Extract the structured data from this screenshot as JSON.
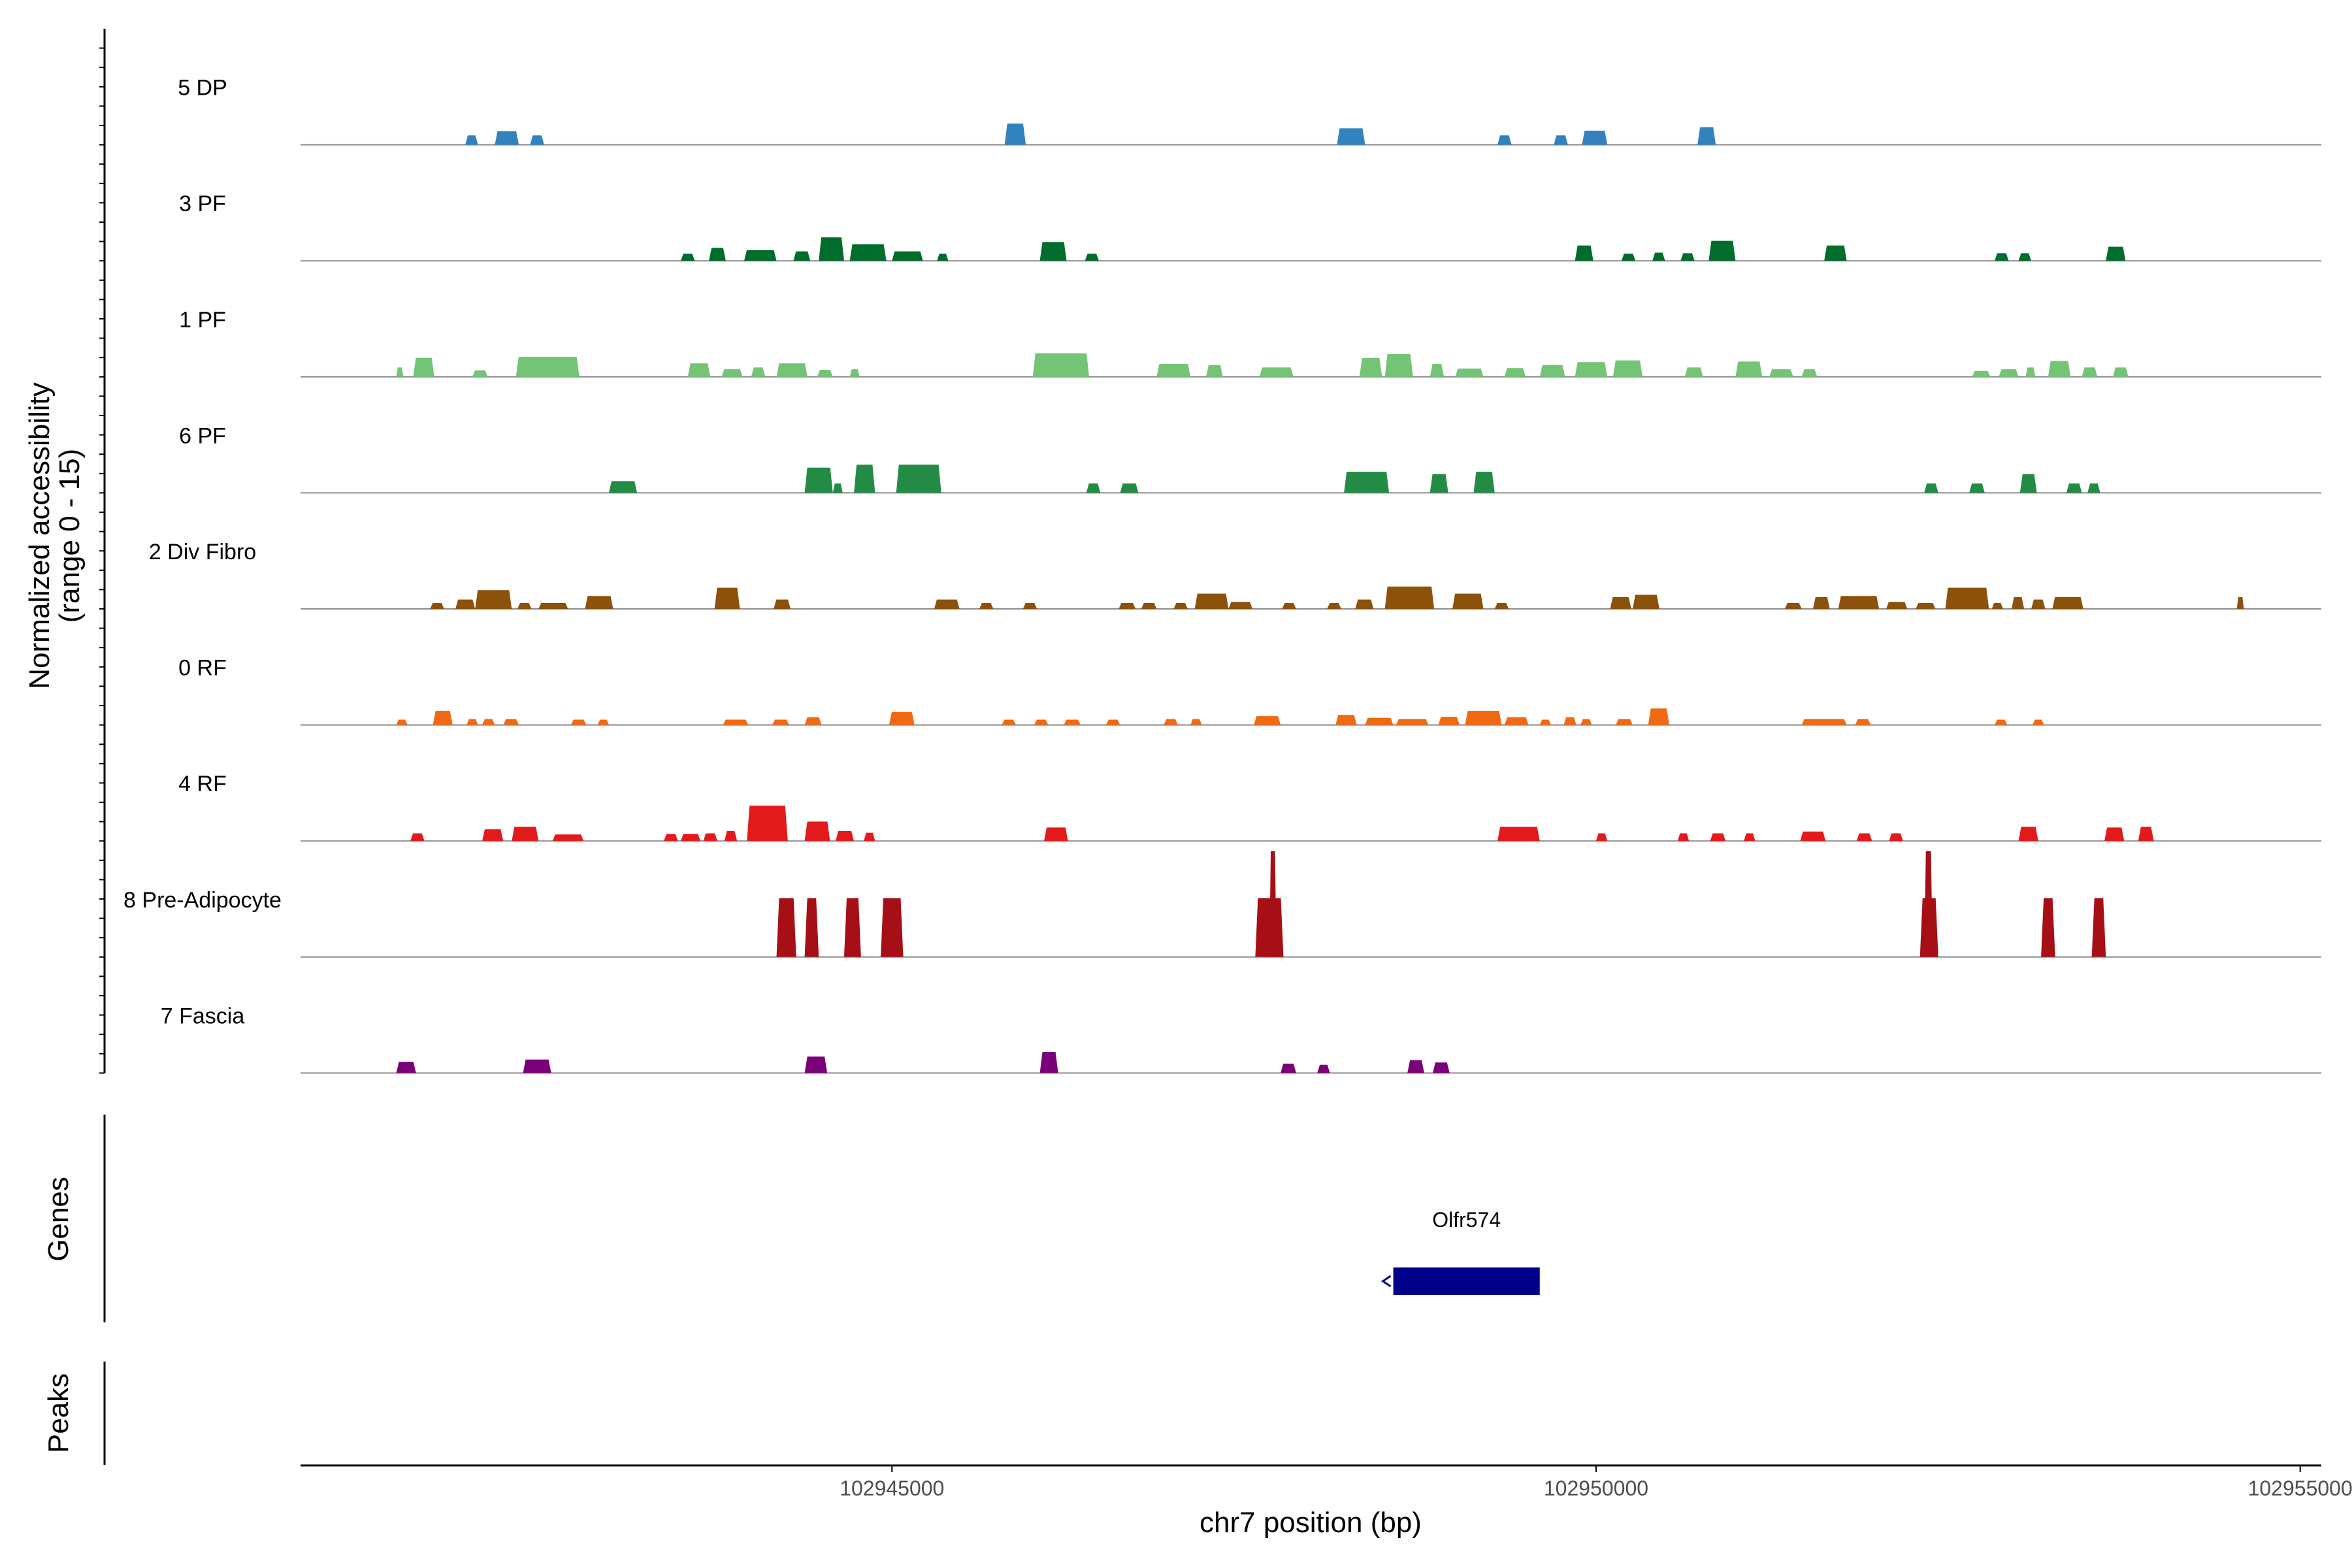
{
  "chart_data": {
    "type": "area",
    "title": "",
    "xlabel": "chr7 position (bp)",
    "ylabel": "Normalized accessibility\n(range 0 - 15)",
    "ylabel_lines": [
      "Normalized accessibility",
      "(range 0 - 15)"
    ],
    "y_range": [
      0,
      15
    ],
    "xlim": [
      102940800,
      102955150
    ],
    "x_ticks": [
      102945000,
      102950000,
      102955000
    ],
    "x_tick_labels": [
      "102945000",
      "102950000",
      "102955000"
    ],
    "tracks": [
      {
        "name": "5 DP",
        "color": "#3182BD",
        "peaks": [
          [
            102941970,
            102942060,
            1.6
          ],
          [
            102942180,
            102942350,
            2.3
          ],
          [
            102942430,
            102942530,
            1.6
          ],
          [
            102945800,
            102945950,
            3.6
          ],
          [
            102948160,
            102948360,
            2.8
          ],
          [
            102949300,
            102949400,
            1.6
          ],
          [
            102949700,
            102949800,
            1.6
          ],
          [
            102949900,
            102950080,
            2.4
          ],
          [
            102950720,
            102950850,
            3.0
          ]
        ]
      },
      {
        "name": "3 PF",
        "color": "#006D2C",
        "peaks": [
          [
            102943500,
            102943600,
            1.2
          ],
          [
            102943700,
            102943820,
            2.2
          ],
          [
            102943950,
            102944180,
            1.8
          ],
          [
            102944300,
            102944420,
            1.6
          ],
          [
            102944480,
            102944660,
            4.0
          ],
          [
            102944700,
            102944960,
            2.8
          ],
          [
            102945000,
            102945220,
            1.6
          ],
          [
            102945320,
            102945400,
            1.2
          ],
          [
            102946050,
            102946240,
            3.2
          ],
          [
            102946370,
            102946470,
            1.2
          ],
          [
            102949850,
            102949980,
            2.6
          ],
          [
            102950180,
            102950280,
            1.2
          ],
          [
            102950400,
            102950490,
            1.4
          ],
          [
            102950600,
            102950700,
            1.3
          ],
          [
            102950800,
            102950990,
            3.4
          ],
          [
            102951620,
            102951780,
            2.6
          ],
          [
            102952830,
            102952930,
            1.3
          ],
          [
            102953000,
            102953090,
            1.3
          ],
          [
            102953620,
            102953760,
            2.4
          ]
        ]
      },
      {
        "name": "1 PF",
        "color": "#74C476",
        "peaks": [
          [
            102941480,
            102941530,
            1.6
          ],
          [
            102941600,
            102941750,
            3.2
          ],
          [
            102942020,
            102942130,
            1.1
          ],
          [
            102942330,
            102942780,
            3.4
          ],
          [
            102943550,
            102943710,
            2.3
          ],
          [
            102943790,
            102943940,
            1.3
          ],
          [
            102944000,
            102944100,
            1.6
          ],
          [
            102944180,
            102944400,
            2.3
          ],
          [
            102944470,
            102944580,
            1.2
          ],
          [
            102944700,
            102944770,
            1.3
          ],
          [
            102946000,
            102946400,
            4.0
          ],
          [
            102946880,
            102947120,
            2.2
          ],
          [
            102947230,
            102947350,
            2.0
          ],
          [
            102947610,
            102947850,
            1.6
          ],
          [
            102948320,
            102948480,
            3.2
          ],
          [
            102948500,
            102948700,
            3.9
          ],
          [
            102948820,
            102948920,
            2.2
          ],
          [
            102949000,
            102949200,
            1.4
          ],
          [
            102949350,
            102949500,
            1.5
          ],
          [
            102949600,
            102949780,
            2.0
          ],
          [
            102949850,
            102950080,
            2.5
          ],
          [
            102950120,
            102950330,
            2.8
          ],
          [
            102950630,
            102950760,
            1.6
          ],
          [
            102950990,
            102951180,
            2.6
          ],
          [
            102951230,
            102951400,
            1.3
          ],
          [
            102951460,
            102951570,
            1.3
          ],
          [
            102952670,
            102952800,
            1.0
          ],
          [
            102952860,
            102953000,
            1.3
          ],
          [
            102953050,
            102953120,
            1.6
          ],
          [
            102953210,
            102953370,
            2.7
          ],
          [
            102953450,
            102953560,
            1.6
          ],
          [
            102953670,
            102953780,
            1.6
          ]
        ]
      },
      {
        "name": "6 PF",
        "color": "#238B45",
        "peaks": [
          [
            102942990,
            102943190,
            2.0
          ],
          [
            102944380,
            102944580,
            4.3
          ],
          [
            102944580,
            102944650,
            1.6
          ],
          [
            102944730,
            102944880,
            4.8
          ],
          [
            102945030,
            102945350,
            4.8
          ],
          [
            102946380,
            102946480,
            1.6
          ],
          [
            102946620,
            102946750,
            1.6
          ],
          [
            102948210,
            102948530,
            3.6
          ],
          [
            102948820,
            102948950,
            3.2
          ],
          [
            102949130,
            102949280,
            3.6
          ],
          [
            102952330,
            102952430,
            1.6
          ],
          [
            102952650,
            102952760,
            1.6
          ],
          [
            102953010,
            102953130,
            3.2
          ],
          [
            102953340,
            102953450,
            1.6
          ],
          [
            102953490,
            102953580,
            1.6
          ]
        ]
      },
      {
        "name": "2 Div Fibro",
        "color": "#8C510A",
        "peaks": [
          [
            102941720,
            102941820,
            1.0
          ],
          [
            102941900,
            102942040,
            1.6
          ],
          [
            102942040,
            102942300,
            3.2
          ],
          [
            102942340,
            102942440,
            1.0
          ],
          [
            102942490,
            102942700,
            1.0
          ],
          [
            102942820,
            102943020,
            2.2
          ],
          [
            102943740,
            102943920,
            3.6
          ],
          [
            102944160,
            102944280,
            1.6
          ],
          [
            102945300,
            102945480,
            1.6
          ],
          [
            102945620,
            102945720,
            1.0
          ],
          [
            102945930,
            102946030,
            1.0
          ],
          [
            102946610,
            102946730,
            1.0
          ],
          [
            102946770,
            102946880,
            1.0
          ],
          [
            102947000,
            102947100,
            1.0
          ],
          [
            102947150,
            102947390,
            2.6
          ],
          [
            102947390,
            102947560,
            1.2
          ],
          [
            102947770,
            102947870,
            1.0
          ],
          [
            102948090,
            102948190,
            1.0
          ],
          [
            102948290,
            102948420,
            1.6
          ],
          [
            102948500,
            102948850,
            3.8
          ],
          [
            102948980,
            102949200,
            2.6
          ],
          [
            102949280,
            102949380,
            1.0
          ],
          [
            102950100,
            102950250,
            2.0
          ],
          [
            102950260,
            102950450,
            2.4
          ],
          [
            102951340,
            102951460,
            1.0
          ],
          [
            102951540,
            102951660,
            2.0
          ],
          [
            102951720,
            102952010,
            2.2
          ],
          [
            102952060,
            102952210,
            1.2
          ],
          [
            102952270,
            102952410,
            1.0
          ],
          [
            102952480,
            102952790,
            3.6
          ],
          [
            102952810,
            102952890,
            1.0
          ],
          [
            102952950,
            102953040,
            2.0
          ],
          [
            102953090,
            102953190,
            1.6
          ],
          [
            102953240,
            102953460,
            2.0
          ],
          [
            102954550,
            102954600,
            2.0
          ]
        ]
      },
      {
        "name": "0 RF",
        "color": "#F16913",
        "peaks": [
          [
            102941480,
            102941560,
            0.9
          ],
          [
            102941740,
            102941880,
            2.4
          ],
          [
            102941980,
            102942060,
            1.0
          ],
          [
            102942090,
            102942180,
            1.0
          ],
          [
            102942240,
            102942350,
            1.0
          ],
          [
            102942720,
            102942830,
            0.9
          ],
          [
            102942910,
            102942990,
            0.9
          ],
          [
            102943800,
            102943980,
            0.9
          ],
          [
            102944150,
            102944270,
            0.9
          ],
          [
            102944380,
            102944500,
            1.3
          ],
          [
            102944980,
            102945160,
            2.2
          ],
          [
            102945780,
            102945880,
            0.9
          ],
          [
            102946010,
            102946110,
            0.9
          ],
          [
            102946220,
            102946340,
            0.9
          ],
          [
            102946520,
            102946620,
            0.9
          ],
          [
            102946930,
            102947030,
            1.0
          ],
          [
            102947120,
            102947200,
            1.0
          ],
          [
            102947570,
            102947760,
            1.5
          ],
          [
            102948150,
            102948300,
            1.7
          ],
          [
            102948360,
            102948560,
            1.2
          ],
          [
            102948580,
            102948810,
            1.0
          ],
          [
            102948880,
            102949030,
            1.4
          ],
          [
            102949070,
            102949330,
            2.4
          ],
          [
            102949350,
            102949520,
            1.3
          ],
          [
            102949600,
            102949680,
            0.9
          ],
          [
            102949770,
            102949860,
            1.3
          ],
          [
            102949890,
            102949970,
            1.0
          ],
          [
            102950140,
            102950260,
            1.0
          ],
          [
            102950370,
            102950520,
            2.8
          ],
          [
            102951460,
            102951780,
            1.0
          ],
          [
            102951840,
            102951950,
            1.0
          ],
          [
            102952830,
            102952920,
            0.9
          ],
          [
            102953100,
            102953180,
            0.9
          ]
        ]
      },
      {
        "name": "4 RF",
        "color": "#E31A1C",
        "peaks": [
          [
            102941580,
            102941680,
            1.3
          ],
          [
            102942090,
            102942240,
            2.0
          ],
          [
            102942300,
            102942490,
            2.4
          ],
          [
            102942590,
            102942810,
            1.1
          ],
          [
            102943380,
            102943480,
            1.2
          ],
          [
            102943500,
            102943640,
            1.2
          ],
          [
            102943660,
            102943760,
            1.3
          ],
          [
            102943810,
            102943900,
            1.7
          ],
          [
            102943970,
            102944260,
            6.0
          ],
          [
            102944380,
            102944560,
            3.3
          ],
          [
            102944600,
            102944730,
            1.7
          ],
          [
            102944800,
            102944880,
            1.4
          ],
          [
            102946080,
            102946250,
            2.3
          ],
          [
            102949300,
            102949600,
            2.4
          ],
          [
            102950000,
            102950080,
            1.3
          ],
          [
            102950580,
            102950660,
            1.3
          ],
          [
            102950810,
            102950920,
            1.3
          ],
          [
            102951050,
            102951130,
            1.3
          ],
          [
            102951450,
            102951630,
            1.6
          ],
          [
            102951850,
            102951960,
            1.3
          ],
          [
            102952080,
            102952180,
            1.3
          ],
          [
            102953000,
            102953140,
            2.4
          ],
          [
            102953610,
            102953750,
            2.3
          ],
          [
            102953850,
            102953960,
            2.4
          ]
        ]
      },
      {
        "name": "8 Pre-Adipocyte",
        "color": "#A50F15",
        "peaks": [
          [
            102944180,
            102944320,
            10.0
          ],
          [
            102944380,
            102944480,
            10.0
          ],
          [
            102944660,
            102944780,
            10.0
          ],
          [
            102944920,
            102945080,
            10.0
          ],
          [
            102947580,
            102947780,
            10.0
          ],
          [
            102947680,
            102947730,
            18.0
          ],
          [
            102952300,
            102952430,
            10.0
          ],
          [
            102952330,
            102952390,
            18.0
          ],
          [
            102953160,
            102953260,
            10.0
          ],
          [
            102953520,
            102953620,
            10.0
          ]
        ]
      },
      {
        "name": "7 Fascia",
        "color": "#7A0177",
        "peaks": [
          [
            102941480,
            102941620,
            1.9
          ],
          [
            102942380,
            102942580,
            2.3
          ],
          [
            102944380,
            102944540,
            2.8
          ],
          [
            102946050,
            102946180,
            3.6
          ],
          [
            102947760,
            102947870,
            1.6
          ],
          [
            102948020,
            102948110,
            1.4
          ],
          [
            102948660,
            102948780,
            2.2
          ],
          [
            102948840,
            102948960,
            1.8
          ]
        ]
      }
    ],
    "genes": [
      {
        "name": "Olfr574",
        "start": 102948560,
        "end": 102949600,
        "strand": "-"
      }
    ],
    "genes_panel_label": "Genes",
    "peaks_panel_label": "Peaks",
    "peaks": []
  }
}
